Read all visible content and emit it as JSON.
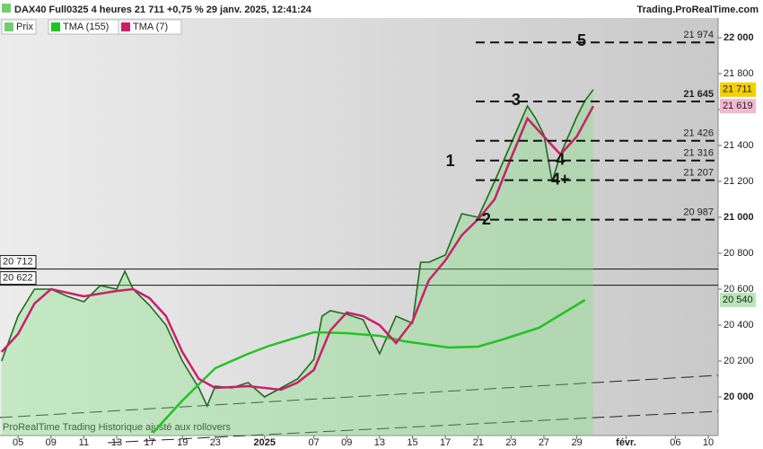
{
  "chart_data": {
    "type": "line",
    "title": "DAX40 Full0325 4 heures 21 711 +0,75 % 29 janv. 2025, 12:41:24",
    "source": "Trading.ProRealTime.com",
    "footer": "ProRealTime Trading  Historique ajusté aux rollovers",
    "xlim": [
      -1.1,
      42.6
    ],
    "ylim": [
      19785,
      22110
    ],
    "xticks": [
      {
        "value": 0,
        "label": "05"
      },
      {
        "value": 2,
        "label": "09"
      },
      {
        "value": 4,
        "label": "11"
      },
      {
        "value": 6,
        "label": "13"
      },
      {
        "value": 8,
        "label": "17"
      },
      {
        "value": 10,
        "label": "19"
      },
      {
        "value": 12,
        "label": "23"
      },
      {
        "value": 15,
        "label": "2025"
      },
      {
        "value": 18,
        "label": "07"
      },
      {
        "value": 20,
        "label": "09"
      },
      {
        "value": 22,
        "label": "13"
      },
      {
        "value": 24,
        "label": "15"
      },
      {
        "value": 26,
        "label": "17"
      },
      {
        "value": 28,
        "label": "21"
      },
      {
        "value": 30,
        "label": "23"
      },
      {
        "value": 32,
        "label": "27"
      },
      {
        "value": 34,
        "label": "29"
      },
      {
        "value": 37,
        "label": "févr."
      },
      {
        "value": 40,
        "label": "06"
      },
      {
        "value": 42,
        "label": "10"
      }
    ],
    "yticks": [
      {
        "value": 20000,
        "label": "20 000"
      },
      {
        "value": 20200,
        "label": "20 200"
      },
      {
        "value": 20400,
        "label": "20 400"
      },
      {
        "value": 20600,
        "label": "20 600"
      },
      {
        "value": 20800,
        "label": "20 800"
      },
      {
        "value": 21000,
        "label": "21 000"
      },
      {
        "value": 21200,
        "label": "21 200"
      },
      {
        "value": 21400,
        "label": "21 400"
      },
      {
        "value": 21600,
        "label": "21 600"
      },
      {
        "value": 21800,
        "label": "21 800"
      },
      {
        "value": 22000,
        "label": "22 000"
      }
    ],
    "series": [
      {
        "name": "Prix",
        "color": "#1f6b1f",
        "legend_color": "#6fcf6f",
        "x": [
          -1,
          0,
          1,
          2,
          3,
          4,
          5,
          6,
          6.5,
          7,
          8,
          9,
          10,
          11,
          11.5,
          12,
          13,
          14,
          15,
          16,
          17,
          18,
          18.5,
          19,
          20,
          21,
          22,
          23,
          24,
          24.5,
          25,
          26,
          27,
          28,
          28.5,
          29,
          30,
          31,
          31.5,
          32,
          32.5,
          33,
          34,
          34.5,
          35
        ],
        "values": [
          20200,
          20450,
          20600,
          20600,
          20560,
          20530,
          20620,
          20600,
          20700,
          20600,
          20510,
          20400,
          20200,
          20050,
          19950,
          20060,
          20050,
          20080,
          20000,
          20050,
          20100,
          20210,
          20450,
          20480,
          20460,
          20430,
          20240,
          20450,
          20410,
          20750,
          20750,
          20790,
          21020,
          21000,
          21100,
          21200,
          21410,
          21620,
          21550,
          21460,
          21200,
          21350,
          21560,
          21650,
          21711
        ],
        "last_label": {
          "value": 21711,
          "label": "21 711"
        },
        "badge_color": "#f5d000"
      },
      {
        "name": "TMA (155)",
        "color": "#22c322",
        "x": [
          8.2,
          10,
          12,
          14,
          15.3,
          18,
          20,
          22,
          23.5,
          26.2,
          28,
          29.5,
          31.7,
          34.5
        ],
        "values": [
          19800,
          19980,
          20160,
          20240,
          20285,
          20360,
          20355,
          20340,
          20310,
          20275,
          20280,
          20320,
          20385,
          20540
        ],
        "last_label": {
          "value": 20540,
          "label": "20 540"
        },
        "badge_color": "#b8e6b8"
      },
      {
        "name": "TMA (7)",
        "color": "#cc1f6a",
        "x": [
          -1,
          0,
          1,
          2,
          4,
          6,
          7,
          8,
          9,
          10,
          11,
          12,
          14,
          16,
          17,
          18,
          19,
          20,
          21,
          22,
          23,
          24,
          25,
          26,
          27,
          28,
          29,
          30,
          31,
          32,
          33,
          34,
          35
        ],
        "values": [
          20250,
          20350,
          20520,
          20600,
          20560,
          20590,
          20600,
          20550,
          20450,
          20250,
          20100,
          20050,
          20060,
          20040,
          20080,
          20150,
          20370,
          20470,
          20450,
          20400,
          20300,
          20420,
          20650,
          20760,
          20900,
          20990,
          21100,
          21330,
          21550,
          21450,
          21350,
          21450,
          21619
        ],
        "last_label": {
          "value": 21619,
          "label": "21 619"
        },
        "badge_color": "#f2b8cf"
      }
    ],
    "levels": [
      {
        "value": 21974,
        "label": "21 974"
      },
      {
        "value": 21645,
        "label": "21 645"
      },
      {
        "value": 21426,
        "label": "21 426"
      },
      {
        "value": 21316,
        "label": "21 316"
      },
      {
        "value": 21207,
        "label": "21 207"
      },
      {
        "value": 20987,
        "label": "20 987"
      }
    ],
    "hlines": [
      {
        "value": 20712,
        "label": "20 712"
      },
      {
        "value": 20622,
        "label": "20 622"
      }
    ],
    "waves": [
      {
        "label": "1",
        "x": 26.3,
        "y": 21310
      },
      {
        "label": "2",
        "x": 28.5,
        "y": 20985
      },
      {
        "label": "3",
        "x": 30.3,
        "y": 21650
      },
      {
        "label": "4",
        "x": 33,
        "y": 21316
      },
      {
        "label": "4+",
        "x": 33,
        "y": 21207
      },
      {
        "label": "5",
        "x": 34.3,
        "y": 21980
      }
    ]
  }
}
